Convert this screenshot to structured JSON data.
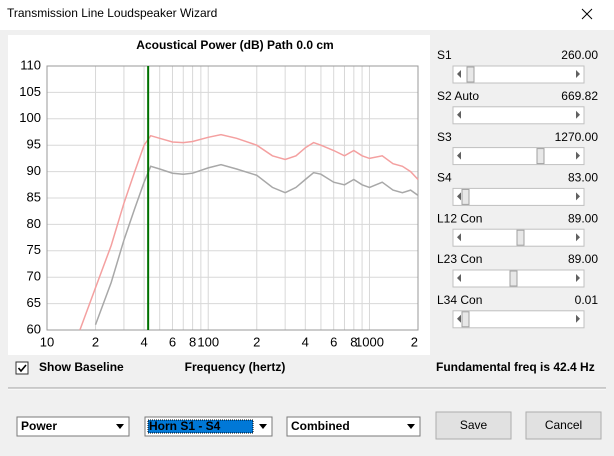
{
  "window": {
    "title": "Transmission Line Loudspeaker Wizard"
  },
  "chart_data": {
    "type": "line",
    "title": "Acoustical Power (dB)   Path 0.0 cm",
    "x_label": "Frequency (hertz)",
    "log_x": true,
    "grid": true,
    "xlim": [
      10,
      2000
    ],
    "ylim": [
      60,
      110
    ],
    "xticks": [
      10,
      {
        "value": 20,
        "label": "2"
      },
      {
        "value": 40,
        "label": "4"
      },
      {
        "value": 60,
        "label": "6"
      },
      {
        "value": 80,
        "label": "8"
      },
      100,
      {
        "value": 200,
        "label": "2"
      },
      {
        "value": 400,
        "label": "4"
      },
      {
        "value": 600,
        "label": "6"
      },
      {
        "value": 800,
        "label": "8"
      },
      1000,
      {
        "value": 2000,
        "label": "2"
      }
    ],
    "xminor": [
      30,
      50,
      70,
      90,
      300,
      500,
      700,
      900
    ],
    "yticks": [
      60,
      65,
      70,
      75,
      80,
      85,
      90,
      95,
      100,
      105,
      110
    ],
    "vline": 42.4,
    "vline_color": "#007000",
    "x": [
      16,
      20,
      25,
      30,
      35,
      40,
      44,
      50,
      60,
      70,
      80,
      100,
      120,
      150,
      200,
      250,
      300,
      350,
      400,
      450,
      500,
      600,
      700,
      800,
      900,
      1000,
      1200,
      1400,
      1600,
      1800,
      2000
    ],
    "series": [
      {
        "color": "#f4a0a0",
        "values": [
          60,
          68,
          76,
          84,
          90,
          95,
          96.8,
          96.3,
          95.6,
          95.5,
          95.7,
          96.5,
          97,
          96.3,
          95,
          93,
          92.3,
          93,
          94.5,
          95.5,
          95,
          94,
          93,
          94,
          93,
          92.5,
          93,
          91.5,
          91,
          90,
          88.5
        ]
      },
      {
        "color": "#a8a8a8",
        "values": [
          null,
          61,
          69,
          77,
          83,
          88,
          91,
          90.5,
          89.7,
          89.5,
          89.7,
          90.7,
          91.3,
          90.5,
          89.3,
          87,
          86,
          87,
          88.5,
          89.8,
          89.5,
          88,
          87.5,
          88.5,
          87.5,
          87,
          88,
          86.5,
          86,
          86.5,
          85.5
        ]
      }
    ]
  },
  "options": {
    "show_baseline": {
      "label": "Show Baseline",
      "checked": true
    },
    "fundamental": "Fundamental freq is 42.4 Hz",
    "fundamental_color": "#007000"
  },
  "parameters": [
    {
      "name": "S1",
      "value": "260.00",
      "color": "#d00000"
    },
    {
      "name": "S2  Auto",
      "value": "669.82",
      "color": "#d00000"
    },
    {
      "name": "S3",
      "value": "1270.00",
      "color": "#d00000"
    },
    {
      "name": "S4",
      "value": "83.00",
      "color": "#d00000"
    },
    {
      "name": "L12  Con",
      "value": "89.00",
      "color": "#c000c0"
    },
    {
      "name": "L23  Con",
      "value": "89.00",
      "color": "#d00000"
    },
    {
      "name": "L34  Con",
      "value": "0.01",
      "color": "#d00000"
    }
  ],
  "dropdowns": [
    "Power",
    "Horn S1 - S4",
    "Combined"
  ],
  "buttons": [
    "Save",
    "Cancel"
  ]
}
